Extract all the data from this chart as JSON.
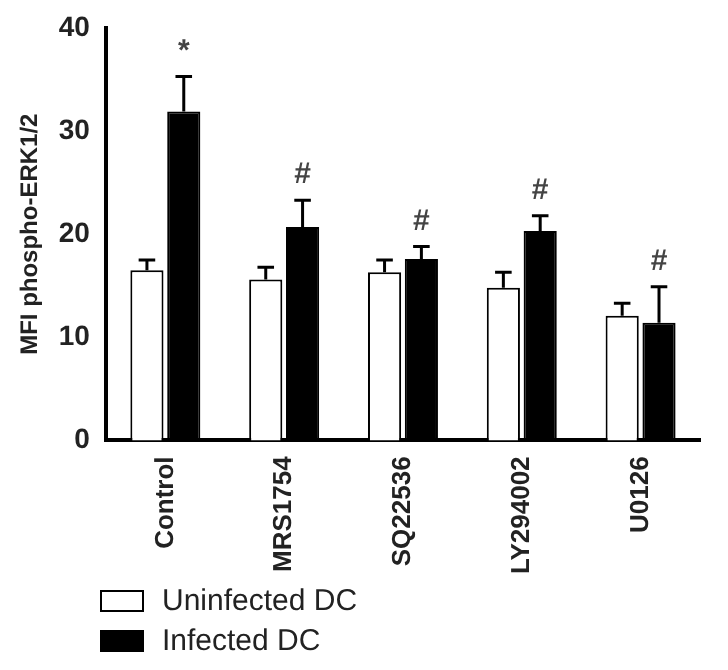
{
  "chart_data": {
    "type": "bar",
    "ylabel": "MFI phospho-ERK1/2",
    "categories": [
      "Control",
      "MRS1754",
      "SQ22536",
      "LY294002",
      "U0126"
    ],
    "series": [
      {
        "name": "Uninfected DC",
        "color": "#ffffff",
        "values": [
          16.5,
          15.6,
          16.3,
          14.8,
          12.1
        ],
        "errors": [
          [
            16.5,
            17.5
          ],
          [
            15.6,
            16.8
          ],
          [
            16.3,
            17.5
          ],
          [
            14.8,
            16.3
          ],
          [
            12.1,
            13.3
          ]
        ]
      },
      {
        "name": "Infected DC",
        "color": "#000000",
        "values": [
          31.9,
          20.7,
          17.6,
          20.3,
          11.4
        ],
        "errors": [
          [
            31.9,
            35.3
          ],
          [
            20.7,
            23.3
          ],
          [
            17.6,
            18.8
          ],
          [
            20.3,
            21.8
          ],
          [
            11.4,
            14.9
          ]
        ]
      }
    ],
    "ylim": [
      0,
      40
    ],
    "yticks": [
      0,
      10,
      20,
      30,
      40
    ],
    "grid": false,
    "legend": "bottom left",
    "annotations": [
      "*",
      "#",
      "#",
      "#",
      "#"
    ]
  }
}
